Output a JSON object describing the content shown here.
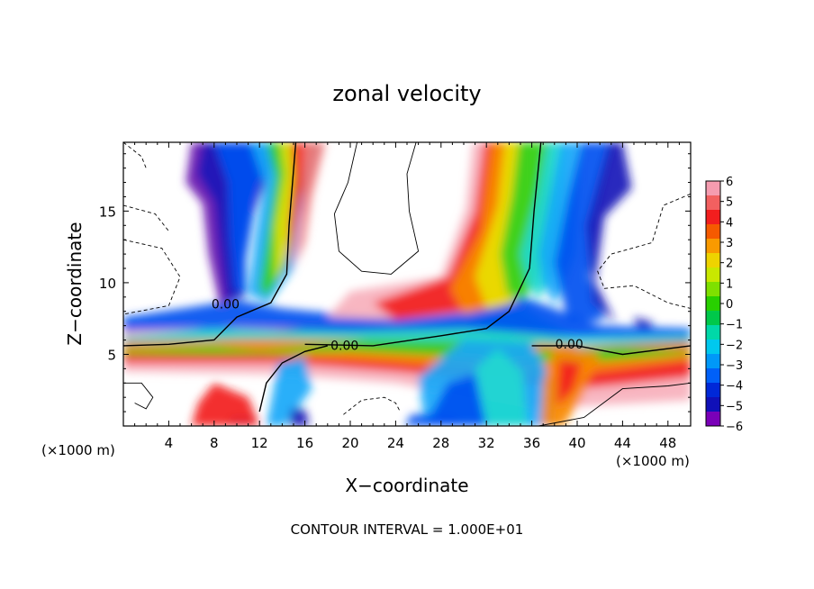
{
  "chart_data": {
    "type": "heatmap",
    "title": "zonal velocity",
    "xlabel": "X−coordinate",
    "ylabel": "Z−coordinate",
    "x_unit_left": "(×1000 m)",
    "x_unit_right": "(×1000 m)",
    "footer": "CONTOUR INTERVAL = 1.000E+01",
    "xlim": [
      0,
      50
    ],
    "ylim": [
      0,
      19.8
    ],
    "x_ticks": [
      4,
      8,
      12,
      16,
      20,
      24,
      28,
      32,
      36,
      40,
      44,
      48
    ],
    "y_ticks": [
      5,
      10,
      15
    ],
    "colorbar": {
      "ticks": [
        "6",
        "5",
        "4",
        "3",
        "2",
        "1",
        "0",
        "−1",
        "−2",
        "−3",
        "−4",
        "−5",
        "−6"
      ],
      "min": -6,
      "max": 6,
      "colors": [
        "#f59cb0",
        "#f26060",
        "#f21e1e",
        "#f55a00",
        "#f99a00",
        "#eed300",
        "#c9e800",
        "#7fe000",
        "#28d000",
        "#00c84a",
        "#00d8a8",
        "#00c8ee",
        "#0098f8",
        "#0060f8",
        "#0028d8",
        "#1010b8",
        "#7a00b8"
      ]
    },
    "contour_labels": [
      {
        "text": "0.00",
        "x": 9.0,
        "z": 8.2
      },
      {
        "text": "0.00",
        "x": 19.5,
        "z": 5.3
      },
      {
        "text": "0.00",
        "x": 39.3,
        "z": 5.4
      }
    ]
  }
}
